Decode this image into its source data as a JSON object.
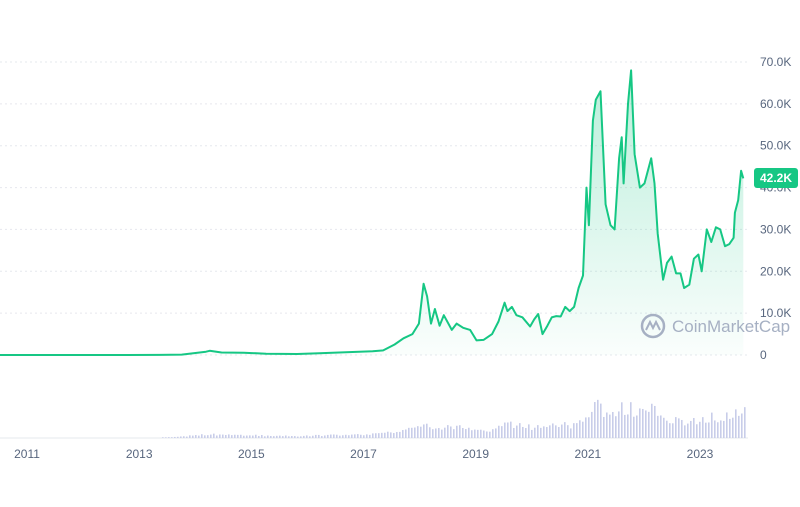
{
  "chart_data": {
    "type": "area",
    "y_tick_labels": [
      "70.0K",
      "60.0K",
      "50.0K",
      "40.0K",
      "30.0K",
      "20.0K",
      "10.0K",
      "0"
    ],
    "x_tick_labels": [
      "2011",
      "2013",
      "2015",
      "2017",
      "2019",
      "2021",
      "2023"
    ],
    "ylim": [
      0,
      70000
    ],
    "xlim": [
      "2010-01-01",
      "2024-01-01"
    ],
    "grid": "horizontal dotted",
    "current_value_label": "42.2K",
    "watermark": "CoinMarketCap",
    "colors": {
      "line": "#16c784",
      "area_top": "#16c784",
      "volume": "#c8cde9",
      "grid": "#e6e8ee",
      "axis_text": "#58667e",
      "badge": "#16c784"
    },
    "series": [
      {
        "x": [
          "2010-01-01",
          "2011-01-01",
          "2012-01-01",
          "2013-01-01",
          "2013-06-01",
          "2013-11-15",
          "2013-12-10",
          "2014-03-01",
          "2014-08-01",
          "2015-01-01",
          "2015-08-01",
          "2016-01-01",
          "2016-07-01",
          "2017-01-01",
          "2017-03-15",
          "2017-06-01",
          "2017-08-01",
          "2017-10-01",
          "2017-11-15",
          "2017-12-17",
          "2018-01-10",
          "2018-02-06",
          "2018-03-05",
          "2018-04-06",
          "2018-05-05",
          "2018-06-29",
          "2018-08-01",
          "2018-09-15",
          "2018-11-01",
          "2018-12-15",
          "2019-02-01",
          "2019-04-01",
          "2019-05-15",
          "2019-06-26",
          "2019-07-15",
          "2019-08-15",
          "2019-09-15",
          "2019-10-26",
          "2019-12-18",
          "2020-01-15",
          "2020-02-12",
          "2020-03-12",
          "2020-04-15",
          "2020-05-15",
          "2020-06-15",
          "2020-07-15",
          "2020-08-15",
          "2020-09-15",
          "2020-10-15",
          "2020-11-15",
          "2020-12-15",
          "2021-01-08",
          "2021-01-25",
          "2021-02-21",
          "2021-03-13",
          "2021-04-14",
          "2021-05-19",
          "2021-06-22",
          "2021-07-20",
          "2021-08-20",
          "2021-09-07",
          "2021-09-20",
          "2021-10-20",
          "2021-11-10",
          "2021-12-04",
          "2022-01-10",
          "2022-02-10",
          "2022-03-28",
          "2022-04-20",
          "2022-05-12",
          "2022-06-18",
          "2022-07-15",
          "2022-08-15",
          "2022-09-15",
          "2022-10-15",
          "2022-11-09",
          "2022-12-15",
          "2023-01-15",
          "2023-02-15",
          "2023-03-10",
          "2023-04-14",
          "2023-05-15",
          "2023-06-15",
          "2023-07-15",
          "2023-08-17",
          "2023-09-15",
          "2023-10-15",
          "2023-10-24",
          "2023-11-15",
          "2023-12-05",
          "2023-12-20"
        ],
        "y": [
          0,
          0,
          5,
          13,
          100,
          800,
          1000,
          600,
          550,
          300,
          250,
          420,
          650,
          900,
          1100,
          2500,
          4000,
          5000,
          7500,
          17000,
          14000,
          7500,
          11000,
          7000,
          9500,
          6000,
          7500,
          6500,
          6000,
          3500,
          3600,
          5000,
          8000,
          12500,
          10500,
          11500,
          9500,
          9000,
          6800,
          8500,
          9800,
          5000,
          7000,
          9000,
          9300,
          9200,
          11500,
          10500,
          11500,
          16000,
          19000,
          40000,
          31000,
          56000,
          61000,
          63000,
          36000,
          31000,
          30000,
          47000,
          52000,
          41000,
          60000,
          68000,
          48000,
          40000,
          41000,
          47000,
          41000,
          29000,
          18000,
          22000,
          23500,
          19500,
          19500,
          16000,
          16800,
          23000,
          24000,
          20000,
          30000,
          27000,
          30500,
          30000,
          26000,
          26500,
          28000,
          34000,
          37000,
          44000,
          42200
        ]
      }
    ]
  }
}
